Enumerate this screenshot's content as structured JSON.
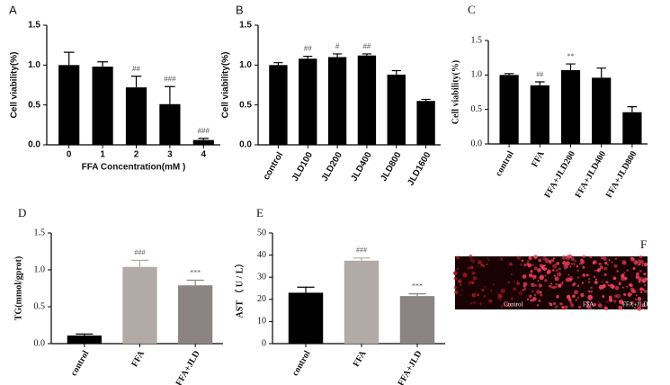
{
  "chart_data": [
    {
      "type": "bar",
      "panel_label": "A",
      "ylabel": "Cell viability(%)",
      "xlabel": "FFA Concentration(mM )",
      "categories": [
        "0",
        "1",
        "2",
        "3",
        "4"
      ],
      "values": [
        1.0,
        0.98,
        0.72,
        0.51,
        0.06
      ],
      "errors": [
        0.16,
        0.06,
        0.14,
        0.22,
        0.02
      ],
      "annotations": [
        null,
        null,
        "##",
        "###",
        "###"
      ],
      "color": "#000000",
      "ylim": [
        0,
        1.5
      ],
      "yticks": [
        {
          "value": 0,
          "label": "0.0"
        },
        0.5,
        {
          "value": 1,
          "label": "1.0"
        },
        1.5
      ]
    },
    {
      "type": "bar",
      "panel_label": "B",
      "ylabel": "Cell viability(%)",
      "categories": [
        "control",
        "JLD100",
        "JLD200",
        "JLD400",
        "JLD800",
        "JLD1600"
      ],
      "values": [
        1.0,
        1.08,
        1.1,
        1.12,
        0.88,
        0.55
      ],
      "errors": [
        0.03,
        0.03,
        0.04,
        0.02,
        0.05,
        0.02
      ],
      "annotations": [
        null,
        "##",
        "#",
        "##",
        null,
        null
      ],
      "color": "#000000",
      "ylim": [
        0,
        1.5
      ],
      "yticks": [
        {
          "value": 0,
          "label": "0.0"
        },
        0.5,
        {
          "value": 1,
          "label": "1.0"
        },
        1.5
      ]
    },
    {
      "type": "bar",
      "panel_label": "C",
      "ylabel": "Cell viability(%)",
      "categories": [
        "control",
        "FFA",
        "FFA+JLD200",
        "FFA+JLD400",
        "FFA+JLD800"
      ],
      "values": [
        1.0,
        0.85,
        1.07,
        0.96,
        0.46
      ],
      "errors": [
        0.02,
        0.05,
        0.09,
        0.14,
        0.08
      ],
      "annotations": [
        null,
        "##",
        "**",
        null,
        null
      ],
      "color": "#000000",
      "ylim": [
        0,
        1.5
      ],
      "yticks": [
        {
          "value": 0,
          "label": "0.0"
        },
        0.5,
        {
          "value": 1,
          "label": "1.0"
        },
        1.5
      ]
    },
    {
      "type": "bar",
      "panel_label": "D",
      "ylabel": "TG(mmol/gprot)",
      "categories": [
        "control",
        "FFA",
        "FFA+JLD"
      ],
      "values": [
        0.11,
        1.04,
        0.79
      ],
      "errors": [
        0.02,
        0.09,
        0.07
      ],
      "annotations": [
        null,
        "###",
        "***"
      ],
      "colors": [
        "#000000",
        "#b1aaa7",
        "#8b8482"
      ],
      "ylim": [
        0,
        1.5
      ],
      "yticks": [
        {
          "value": 0,
          "label": "0.0"
        },
        0.5,
        {
          "value": 1,
          "label": "1.0"
        },
        1.5
      ]
    },
    {
      "type": "bar",
      "panel_label": "E",
      "ylabel": "AST （ U / L）",
      "categories": [
        "control",
        "FFA",
        "FFA+JLD"
      ],
      "values": [
        23,
        37.5,
        21.5
      ],
      "errors": [
        2.5,
        1.2,
        1.0
      ],
      "annotations": [
        null,
        "###",
        "***"
      ],
      "colors": [
        "#000000",
        "#b1aaa7",
        "#8b8482"
      ],
      "ylim": [
        0,
        50
      ],
      "yticks": [
        0,
        10,
        20,
        30,
        40,
        50
      ]
    }
  ],
  "panel_f": {
    "panel_label": "F",
    "captions": [
      "Control",
      "FFA",
      "FFA+JLD"
    ]
  }
}
